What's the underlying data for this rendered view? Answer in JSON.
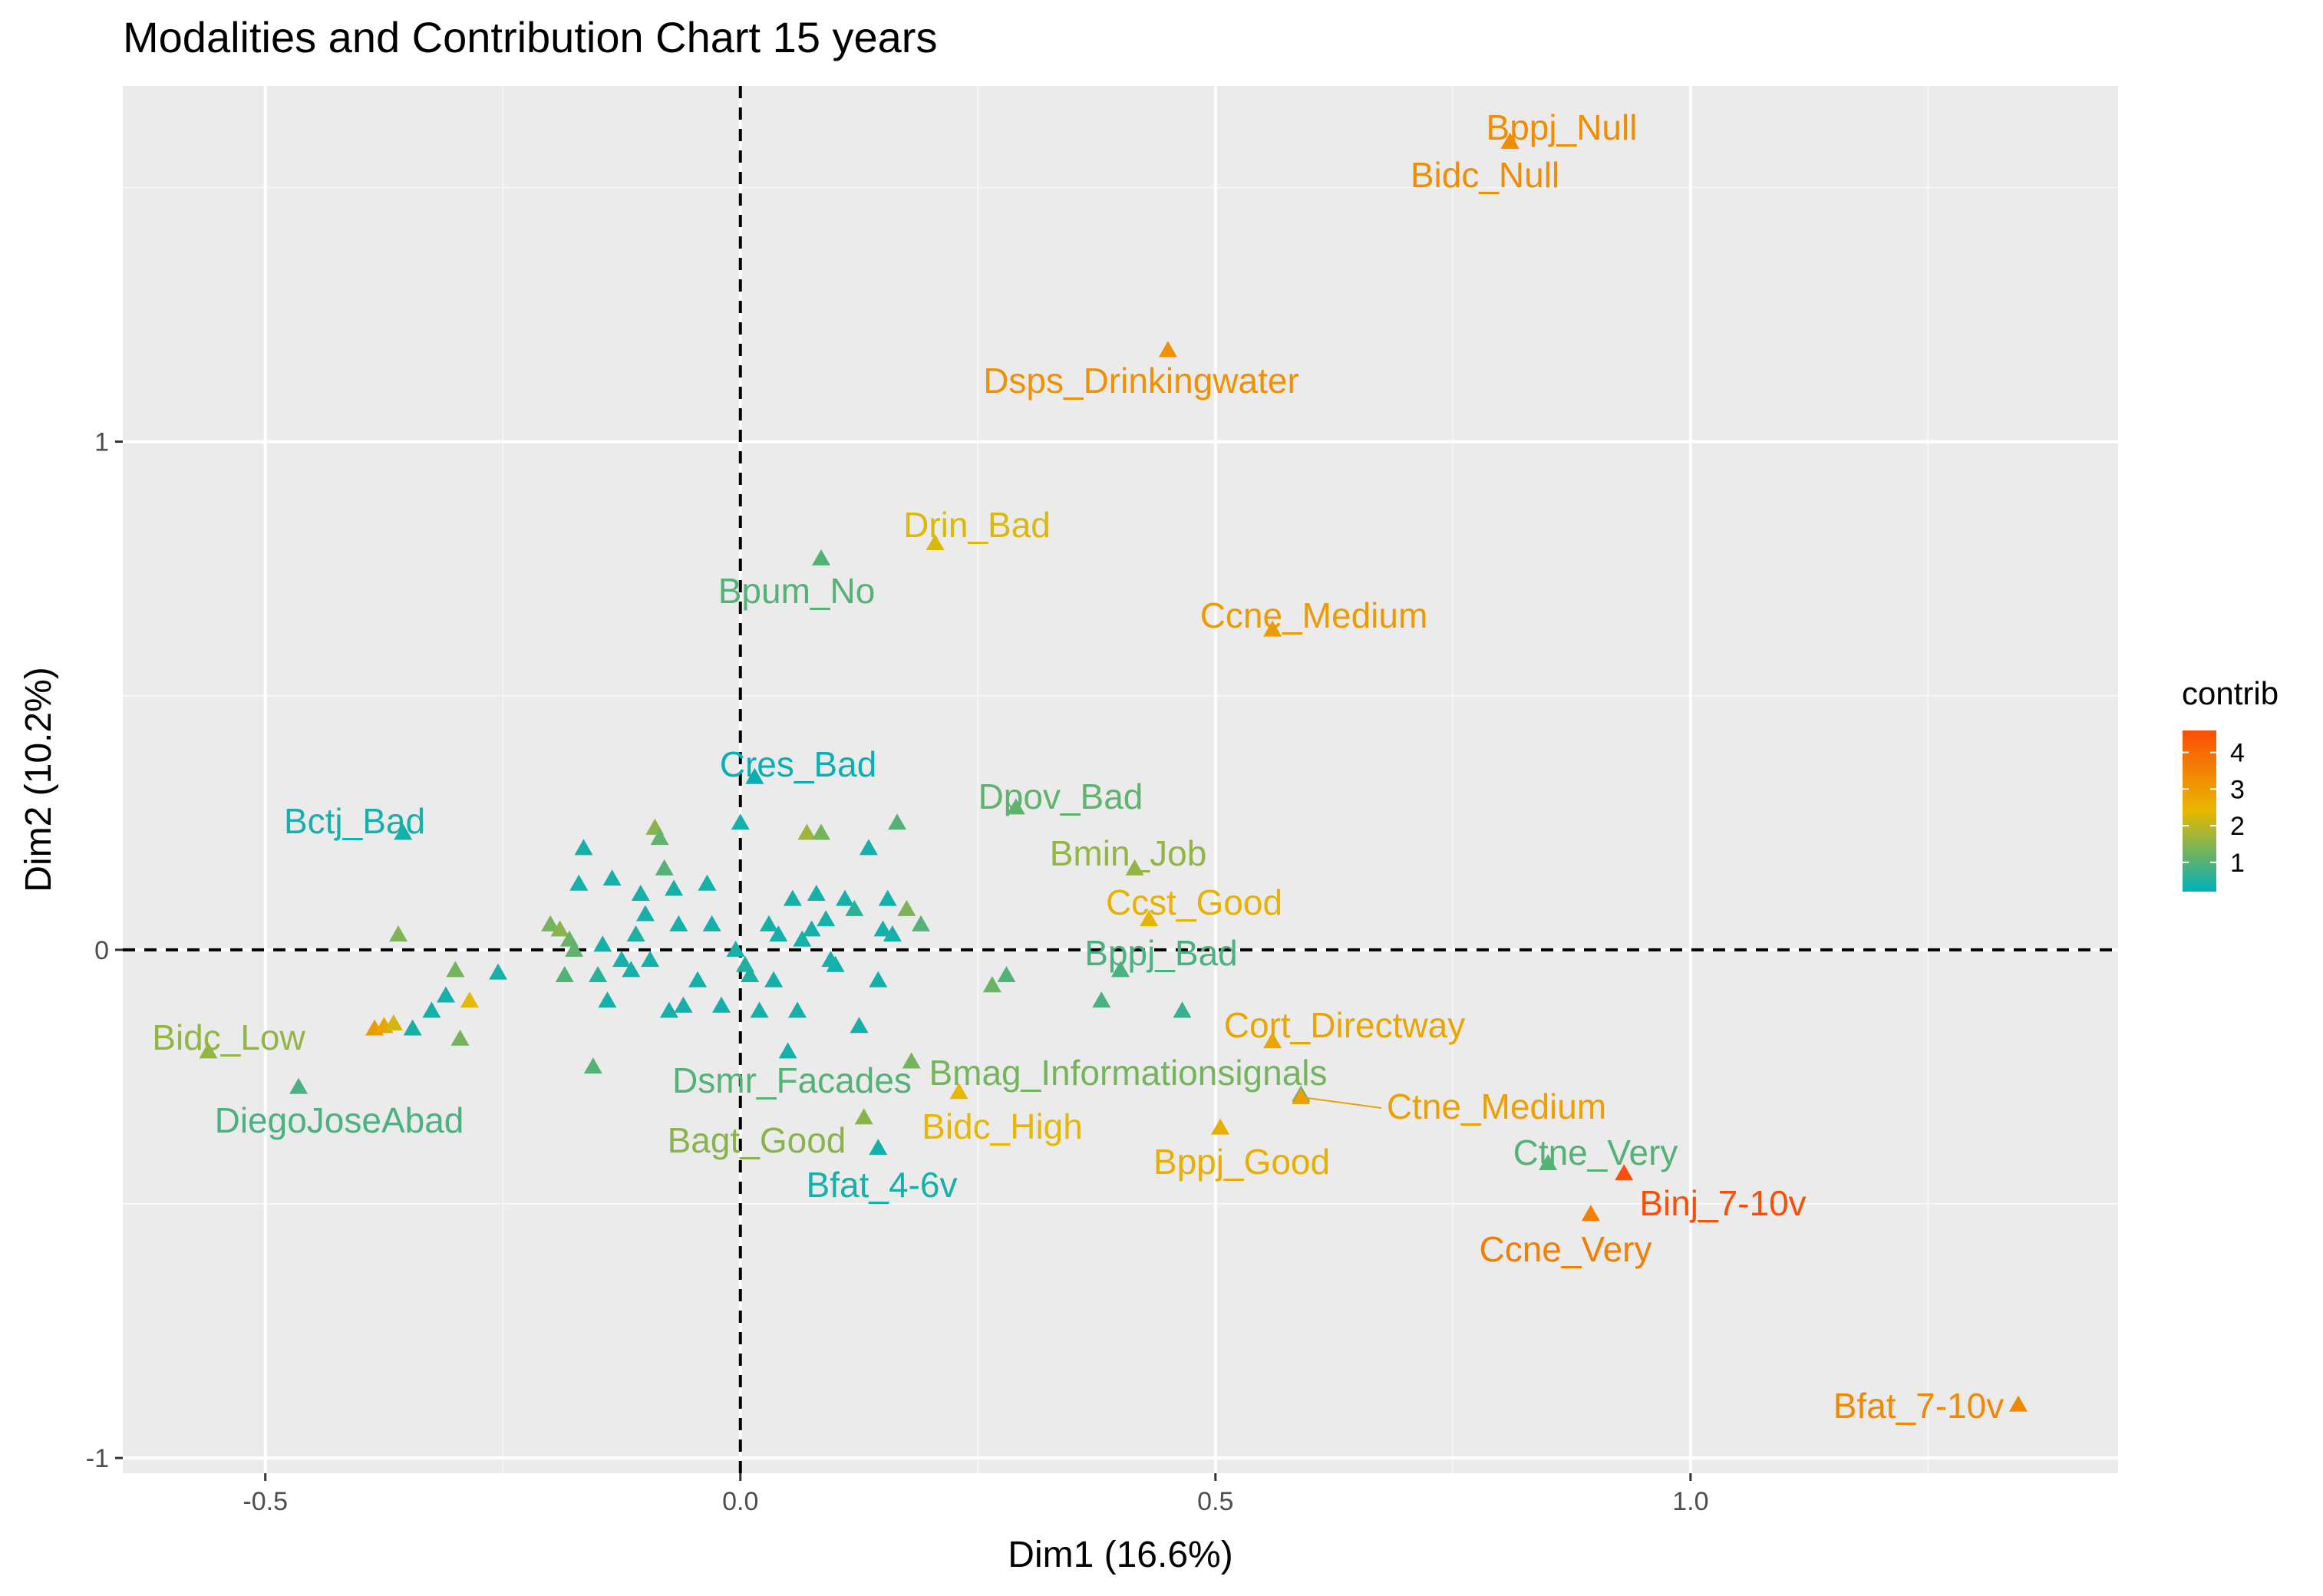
{
  "chart_data": {
    "type": "scatter",
    "title": "Modalities and Contribution Chart 15 years",
    "xlabel": "Dim1 (16.6%)",
    "ylabel": "Dim2 (10.2%)",
    "xlim": [
      -0.65,
      1.45
    ],
    "ylim": [
      -1.03,
      1.7
    ],
    "x_ticks": [
      -0.5,
      0.0,
      0.5,
      1.0
    ],
    "x_tick_labels": [
      "-0.5",
      "0.0",
      "0.5",
      "1.0"
    ],
    "y_ticks": [
      -1,
      0,
      1
    ],
    "y_tick_labels": [
      "-1",
      "0",
      "1"
    ],
    "grid": true,
    "reference_lines": [
      {
        "axis": "x",
        "value": 0,
        "style": "dashed"
      },
      {
        "axis": "y",
        "value": 0,
        "style": "dashed"
      }
    ],
    "marker": "triangle",
    "legend": {
      "title": "contrib",
      "position": "right",
      "ticks": [
        1,
        2,
        3,
        4
      ],
      "tick_labels": [
        "1",
        "2",
        "3",
        "4"
      ],
      "range": [
        0.2,
        4.6
      ]
    },
    "color_scale": [
      "#00AFBB",
      "#E7B800",
      "#FC4E07"
    ],
    "labeled_points": [
      {
        "label": "Bppj_Null",
        "x": 0.81,
        "y": 1.59,
        "contrib": 3.3
      },
      {
        "label": "Bidc_Null",
        "x": 0.81,
        "y": 1.59,
        "contrib": 3.3
      },
      {
        "label": "Dsps_Drinkingwater",
        "x": 0.45,
        "y": 1.18,
        "contrib": 3.2
      },
      {
        "label": "Drin_Bad",
        "x": 0.205,
        "y": 0.8,
        "contrib": 2.3
      },
      {
        "label": "Bpum_No",
        "x": 0.085,
        "y": 0.77,
        "contrib": 1.0
      },
      {
        "label": "Ccne_Medium",
        "x": 0.56,
        "y": 0.63,
        "contrib": 3.0
      },
      {
        "label": "Cres_Bad",
        "x": 0.015,
        "y": 0.34,
        "contrib": 0.3
      },
      {
        "label": "Dpov_Bad",
        "x": 0.29,
        "y": 0.28,
        "contrib": 1.1
      },
      {
        "label": "Bctj_Bad",
        "x": -0.355,
        "y": 0.23,
        "contrib": 0.4
      },
      {
        "label": "Bmin_Job",
        "x": 0.415,
        "y": 0.16,
        "contrib": 1.6
      },
      {
        "label": "Ccst_Good",
        "x": 0.43,
        "y": 0.06,
        "contrib": 2.5
      },
      {
        "label": "Bppj_Bad",
        "x": 0.4,
        "y": -0.04,
        "contrib": 0.9
      },
      {
        "label": "Cort_Directway",
        "x": 0.56,
        "y": -0.18,
        "contrib": 2.8
      },
      {
        "label": "Bidc_Low",
        "x": -0.56,
        "y": -0.2,
        "contrib": 1.6
      },
      {
        "label": "Dsmr_Facades",
        "x": -0.155,
        "y": -0.23,
        "contrib": 1.0
      },
      {
        "label": "Bmag_Informationsignals",
        "x": 0.18,
        "y": -0.22,
        "contrib": 1.3
      },
      {
        "label": "DiegoJoseAbad",
        "x": -0.465,
        "y": -0.27,
        "contrib": 0.9
      },
      {
        "label": "Ctne_Medium",
        "x": 0.59,
        "y": -0.29,
        "contrib": 2.9
      },
      {
        "label": "Bidc_High",
        "x": 0.23,
        "y": -0.28,
        "contrib": 2.4
      },
      {
        "label": "Bagt_Good",
        "x": 0.13,
        "y": -0.33,
        "contrib": 1.5
      },
      {
        "label": "Bppj_Good",
        "x": 0.505,
        "y": -0.35,
        "contrib": 2.6
      },
      {
        "label": "Bfat_4-6v",
        "x": 0.145,
        "y": -0.39,
        "contrib": 0.4
      },
      {
        "label": "Ctne_Very",
        "x": 0.85,
        "y": -0.42,
        "contrib": 1.0
      },
      {
        "label": "Binj_7-10v",
        "x": 0.93,
        "y": -0.44,
        "contrib": 4.6
      },
      {
        "label": "Ccne_Very",
        "x": 0.895,
        "y": -0.52,
        "contrib": 3.6
      },
      {
        "label": "Bfat_7-10v",
        "x": 1.345,
        "y": -0.895,
        "contrib": 3.4
      }
    ],
    "unlabeled_points": [
      {
        "x": -0.385,
        "y": -0.155,
        "contrib": 3.0
      },
      {
        "x": -0.375,
        "y": -0.15,
        "contrib": 2.8
      },
      {
        "x": -0.365,
        "y": -0.145,
        "contrib": 2.2
      },
      {
        "x": -0.36,
        "y": 0.03,
        "contrib": 1.4
      },
      {
        "x": -0.345,
        "y": -0.155,
        "contrib": 0.4
      },
      {
        "x": -0.325,
        "y": -0.12,
        "contrib": 0.4
      },
      {
        "x": -0.31,
        "y": -0.09,
        "contrib": 0.4
      },
      {
        "x": -0.3,
        "y": -0.04,
        "contrib": 1.3
      },
      {
        "x": -0.295,
        "y": -0.175,
        "contrib": 1.3
      },
      {
        "x": -0.285,
        "y": -0.1,
        "contrib": 2.4
      },
      {
        "x": -0.255,
        "y": -0.045,
        "contrib": 0.4
      },
      {
        "x": -0.2,
        "y": 0.05,
        "contrib": 1.3
      },
      {
        "x": -0.19,
        "y": 0.04,
        "contrib": 1.5
      },
      {
        "x": -0.185,
        "y": -0.05,
        "contrib": 1.0
      },
      {
        "x": -0.18,
        "y": 0.02,
        "contrib": 1.2
      },
      {
        "x": -0.175,
        "y": 0.0,
        "contrib": 1.1
      },
      {
        "x": -0.17,
        "y": 0.13,
        "contrib": 0.4
      },
      {
        "x": -0.165,
        "y": 0.2,
        "contrib": 0.4
      },
      {
        "x": -0.15,
        "y": -0.05,
        "contrib": 0.6
      },
      {
        "x": -0.145,
        "y": 0.01,
        "contrib": 0.4
      },
      {
        "x": -0.14,
        "y": -0.1,
        "contrib": 0.4
      },
      {
        "x": -0.135,
        "y": 0.14,
        "contrib": 0.4
      },
      {
        "x": -0.125,
        "y": -0.02,
        "contrib": 0.4
      },
      {
        "x": -0.115,
        "y": -0.04,
        "contrib": 0.4
      },
      {
        "x": -0.11,
        "y": 0.03,
        "contrib": 0.5
      },
      {
        "x": -0.105,
        "y": 0.11,
        "contrib": 0.4
      },
      {
        "x": -0.1,
        "y": 0.07,
        "contrib": 0.4
      },
      {
        "x": -0.095,
        "y": -0.02,
        "contrib": 0.4
      },
      {
        "x": -0.09,
        "y": 0.24,
        "contrib": 1.5
      },
      {
        "x": -0.085,
        "y": 0.22,
        "contrib": 1.1
      },
      {
        "x": -0.08,
        "y": 0.16,
        "contrib": 1.0
      },
      {
        "x": -0.075,
        "y": -0.12,
        "contrib": 0.4
      },
      {
        "x": -0.07,
        "y": 0.12,
        "contrib": 0.4
      },
      {
        "x": -0.065,
        "y": 0.05,
        "contrib": 0.4
      },
      {
        "x": -0.06,
        "y": -0.11,
        "contrib": 0.4
      },
      {
        "x": -0.045,
        "y": -0.06,
        "contrib": 0.4
      },
      {
        "x": -0.035,
        "y": 0.13,
        "contrib": 0.4
      },
      {
        "x": -0.03,
        "y": 0.05,
        "contrib": 0.4
      },
      {
        "x": -0.02,
        "y": -0.11,
        "contrib": 0.4
      },
      {
        "x": -0.005,
        "y": 0.0,
        "contrib": 0.4
      },
      {
        "x": 0.0,
        "y": 0.25,
        "contrib": 0.4
      },
      {
        "x": 0.005,
        "y": -0.03,
        "contrib": 0.5
      },
      {
        "x": 0.01,
        "y": -0.05,
        "contrib": 0.5
      },
      {
        "x": 0.02,
        "y": -0.12,
        "contrib": 0.4
      },
      {
        "x": 0.03,
        "y": 0.05,
        "contrib": 0.4
      },
      {
        "x": 0.035,
        "y": -0.06,
        "contrib": 0.4
      },
      {
        "x": 0.04,
        "y": 0.03,
        "contrib": 0.4
      },
      {
        "x": 0.05,
        "y": -0.2,
        "contrib": 0.4
      },
      {
        "x": 0.055,
        "y": 0.1,
        "contrib": 0.4
      },
      {
        "x": 0.06,
        "y": -0.12,
        "contrib": 0.4
      },
      {
        "x": 0.065,
        "y": 0.02,
        "contrib": 0.4
      },
      {
        "x": 0.07,
        "y": 0.23,
        "contrib": 1.7
      },
      {
        "x": 0.075,
        "y": 0.04,
        "contrib": 0.4
      },
      {
        "x": 0.08,
        "y": 0.11,
        "contrib": 0.4
      },
      {
        "x": 0.085,
        "y": 0.23,
        "contrib": 1.3
      },
      {
        "x": 0.09,
        "y": 0.06,
        "contrib": 0.4
      },
      {
        "x": 0.095,
        "y": -0.02,
        "contrib": 0.4
      },
      {
        "x": 0.1,
        "y": -0.03,
        "contrib": 0.4
      },
      {
        "x": 0.11,
        "y": 0.1,
        "contrib": 0.4
      },
      {
        "x": 0.12,
        "y": 0.08,
        "contrib": 0.6
      },
      {
        "x": 0.125,
        "y": -0.15,
        "contrib": 0.4
      },
      {
        "x": 0.135,
        "y": 0.2,
        "contrib": 0.4
      },
      {
        "x": 0.145,
        "y": -0.06,
        "contrib": 0.4
      },
      {
        "x": 0.15,
        "y": 0.04,
        "contrib": 0.4
      },
      {
        "x": 0.155,
        "y": 0.1,
        "contrib": 0.4
      },
      {
        "x": 0.16,
        "y": 0.03,
        "contrib": 0.4
      },
      {
        "x": 0.165,
        "y": 0.25,
        "contrib": 1.0
      },
      {
        "x": 0.175,
        "y": 0.08,
        "contrib": 1.4
      },
      {
        "x": 0.19,
        "y": 0.05,
        "contrib": 1.0
      },
      {
        "x": 0.265,
        "y": -0.07,
        "contrib": 1.2
      },
      {
        "x": 0.28,
        "y": -0.05,
        "contrib": 1.0
      },
      {
        "x": 0.38,
        "y": -0.1,
        "contrib": 0.9
      },
      {
        "x": 0.465,
        "y": -0.12,
        "contrib": 0.7
      },
      {
        "x": 0.59,
        "y": -0.285,
        "contrib": 1.1
      }
    ]
  }
}
